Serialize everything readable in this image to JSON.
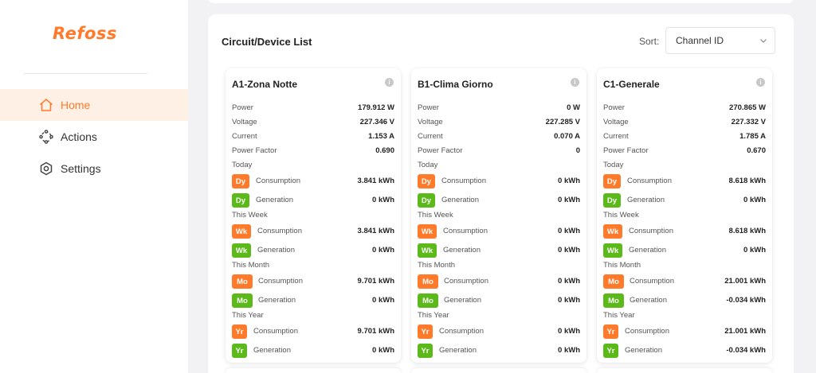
{
  "app": {
    "logo": "Refoss"
  },
  "sidebar": {
    "items": [
      {
        "label": "Home",
        "icon": "home-icon",
        "active": true
      },
      {
        "label": "Actions",
        "icon": "actions-icon",
        "active": false
      },
      {
        "label": "Settings",
        "icon": "settings-icon",
        "active": false
      }
    ]
  },
  "main": {
    "title": "Circuit/Device List",
    "sort_label": "Sort:",
    "sort_value": "Channel ID"
  },
  "colors": {
    "accent": "#ff7a2a",
    "green": "#5bba1a",
    "active_bg": "#fff0e6"
  },
  "labels": {
    "power": "Power",
    "voltage": "Voltage",
    "current": "Current",
    "pf": "Power Factor",
    "today": "Today",
    "week": "This Week",
    "month": "This Month",
    "year": "This Year",
    "consumption": "Consumption",
    "generation": "Generation",
    "dy": "Dy",
    "wk": "Wk",
    "mo": "Mo",
    "yr": "Yr"
  },
  "cards": [
    {
      "name": "A1-Zona Notte",
      "power": "179.912 W",
      "voltage": "227.346 V",
      "current": "1.153 A",
      "pf": "0.690",
      "today_cons": "3.841 kWh",
      "today_gen": "0 kWh",
      "week_cons": "3.841 kWh",
      "week_gen": "0 kWh",
      "month_cons": "9.701 kWh",
      "month_gen": "0 kWh",
      "year_cons": "9.701 kWh",
      "year_gen": "0 kWh"
    },
    {
      "name": "B1-Clima Giorno",
      "power": "0 W",
      "voltage": "227.285 V",
      "current": "0.070 A",
      "pf": "0",
      "today_cons": "0 kWh",
      "today_gen": "0 kWh",
      "week_cons": "0 kWh",
      "week_gen": "0 kWh",
      "month_cons": "0 kWh",
      "month_gen": "0 kWh",
      "year_cons": "0 kWh",
      "year_gen": "0 kWh"
    },
    {
      "name": "C1-Generale",
      "power": "270.865 W",
      "voltage": "227.332 V",
      "current": "1.785 A",
      "pf": "0.670",
      "today_cons": "8.618 kWh",
      "today_gen": "0 kWh",
      "week_cons": "8.618 kWh",
      "week_gen": "0 kWh",
      "month_cons": "21.001 kWh",
      "month_gen": "-0.034 kWh",
      "year_cons": "21.001 kWh",
      "year_gen": "-0.034 kWh"
    }
  ]
}
